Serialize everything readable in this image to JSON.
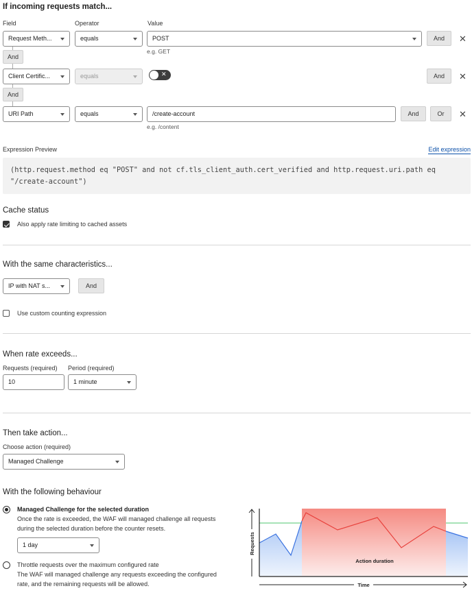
{
  "match": {
    "title": "If incoming requests match...",
    "col_field": "Field",
    "col_operator": "Operator",
    "col_value": "Value",
    "rows": [
      {
        "field": "Request Meth...",
        "operator": "equals",
        "value": "POST",
        "hint": "e.g. GET",
        "and": "And"
      },
      {
        "field": "Client Certific...",
        "operator": "equals",
        "toggle_on": false,
        "and": "And"
      },
      {
        "field": "URI Path",
        "operator": "equals",
        "value": "/create-account",
        "hint": "e.g. /content",
        "and": "And",
        "or": "Or"
      }
    ],
    "connectors": [
      "And",
      "And"
    ]
  },
  "expression": {
    "label": "Expression Preview",
    "edit_link": "Edit expression",
    "line1": "(http.request.method eq \"POST\" and not cf.tls_client_auth.cert_verified and http.request.uri.path eq",
    "line2": "\"/create-account\")"
  },
  "cache": {
    "title": "Cache status",
    "checkbox_label": "Also apply rate limiting to cached assets",
    "checked": true
  },
  "characteristics": {
    "title": "With the same characteristics...",
    "select": "IP with NAT s...",
    "and": "And",
    "custom_label": "Use custom counting expression",
    "custom_checked": false
  },
  "rate": {
    "title": "When rate exceeds...",
    "requests_label": "Requests (required)",
    "requests_value": "10",
    "period_label": "Period (required)",
    "period_value": "1 minute"
  },
  "action": {
    "title": "Then take action...",
    "choose_label": "Choose action (required)",
    "choose_value": "Managed Challenge"
  },
  "behaviour": {
    "title": "With the following behaviour",
    "option1_title": "Managed Challenge for the selected duration",
    "option1_desc1": "Once the rate is exceeded, the WAF will managed challenge all requests",
    "option1_desc2": "during the selected duration before the counter resets.",
    "duration": "1 day",
    "option2_title": "Throttle requests over the maximum configured rate",
    "option2_desc1": "The WAF will managed challenge any requests exceeding the configured",
    "option2_desc2": "rate, and the remaining requests will be allowed.",
    "selected": 1
  },
  "diagram": {
    "y_label": "Requests",
    "x_label": "Time",
    "region_label": "Action duration",
    "colors": {
      "threshold": "#4cc46c",
      "normal": "#3b73e0",
      "exceeded": "#e8413c",
      "region": "#f58a82"
    }
  }
}
